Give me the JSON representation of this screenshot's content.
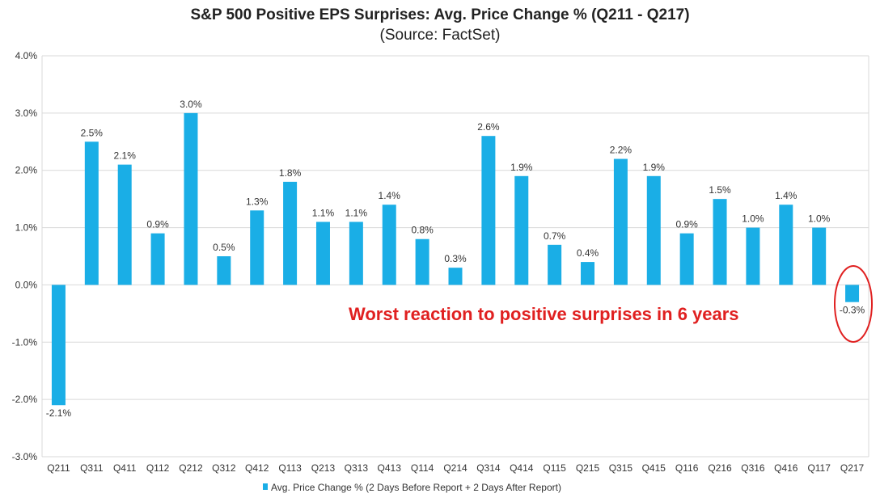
{
  "chart_data": {
    "type": "bar",
    "title": "S&P 500 Positive EPS Surprises: Avg. Price Change % (Q211 - Q217)",
    "subtitle": "(Source: FactSet)",
    "categories": [
      "Q211",
      "Q311",
      "Q411",
      "Q112",
      "Q212",
      "Q312",
      "Q412",
      "Q113",
      "Q213",
      "Q313",
      "Q413",
      "Q114",
      "Q214",
      "Q314",
      "Q414",
      "Q115",
      "Q215",
      "Q315",
      "Q415",
      "Q116",
      "Q216",
      "Q316",
      "Q416",
      "Q117",
      "Q217"
    ],
    "series": [
      {
        "name": "Avg. Price Change % (2 Days Before Report + 2 Days After Report)",
        "values": [
          -2.1,
          2.5,
          2.1,
          0.9,
          3.0,
          0.5,
          1.3,
          1.8,
          1.1,
          1.1,
          1.4,
          0.8,
          0.3,
          2.6,
          1.9,
          0.7,
          0.4,
          2.2,
          1.9,
          0.9,
          1.5,
          1.0,
          1.4,
          1.0,
          -0.3
        ],
        "labels": [
          "-2.1%",
          "2.5%",
          "2.1%",
          "0.9%",
          "3.0%",
          "0.5%",
          "1.3%",
          "1.8%",
          "1.1%",
          "1.1%",
          "1.4%",
          "0.8%",
          "0.3%",
          "2.6%",
          "1.9%",
          "0.7%",
          "0.4%",
          "2.2%",
          "1.9%",
          "0.9%",
          "1.5%",
          "1.0%",
          "1.4%",
          "1.0%",
          "-0.3%"
        ]
      }
    ],
    "ylim": [
      -3.0,
      4.0
    ],
    "yticks": [
      "-3.0%",
      "-2.0%",
      "-1.0%",
      "0.0%",
      "1.0%",
      "2.0%",
      "3.0%",
      "4.0%"
    ],
    "grid": true,
    "legend_position": "bottom",
    "colors": {
      "bar": "#1aaee6",
      "annotation": "#e02020",
      "grid": "#d9d9d9"
    },
    "annotation": {
      "text": "Worst reaction to positive surprises in 6 years",
      "highlight_category": "Q217"
    }
  }
}
